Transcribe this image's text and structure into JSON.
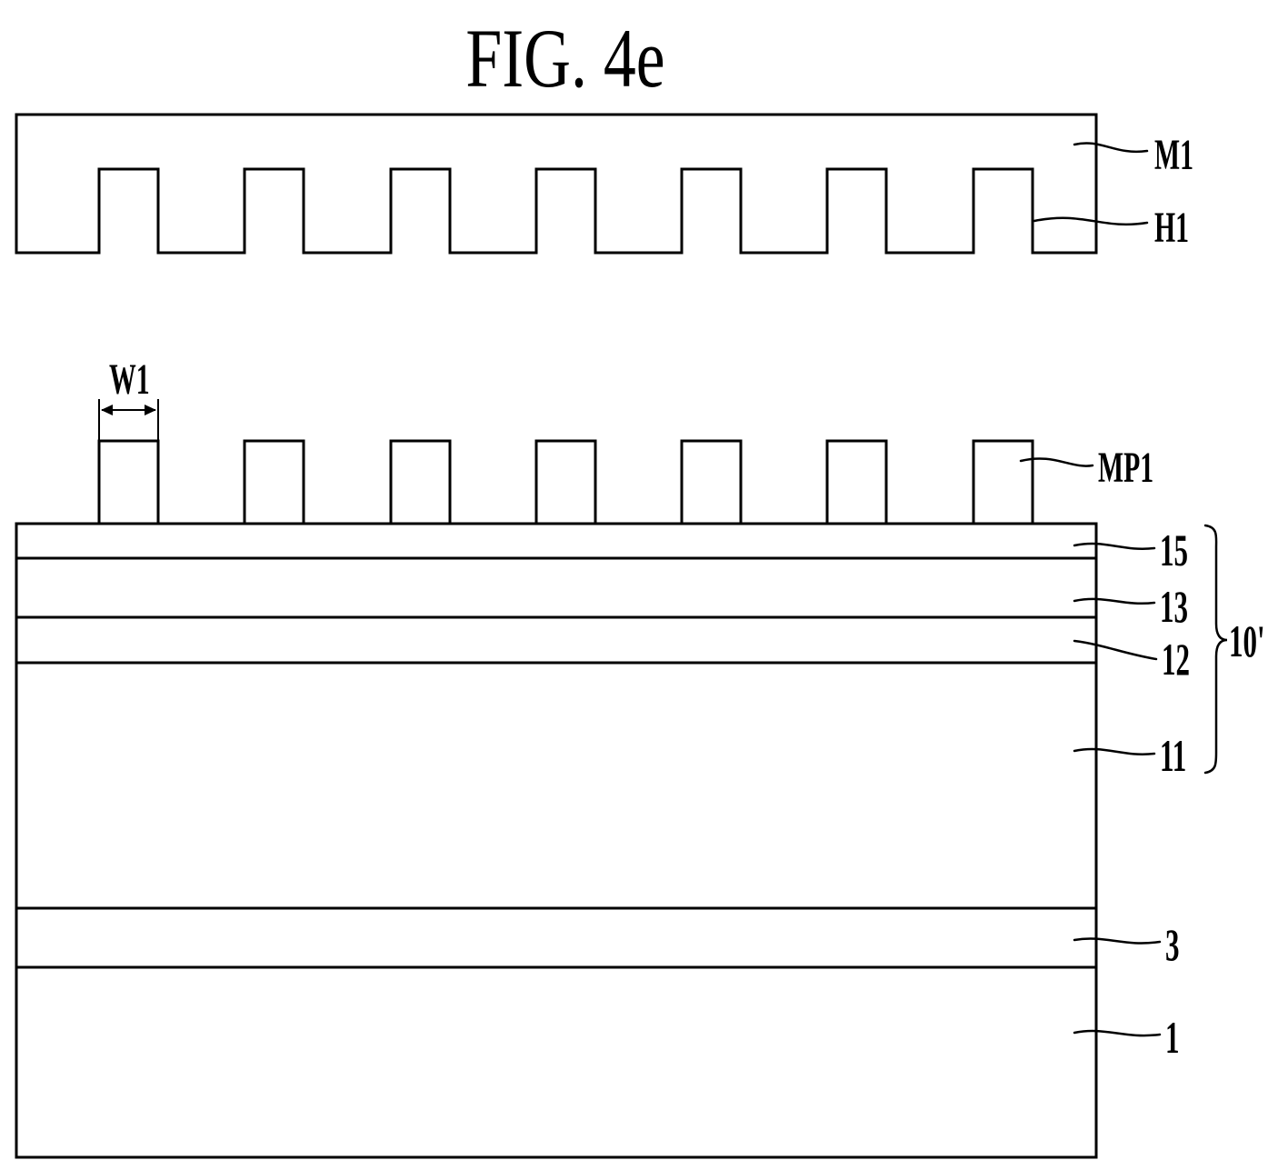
{
  "figure": {
    "title": "FIG. 4e",
    "labels": {
      "mold": "M1",
      "holes": "H1",
      "width": "W1",
      "mold_pattern": "MP1",
      "layer_15": "15",
      "layer_13": "13",
      "layer_12": "12",
      "layer_11": "11",
      "stack": "10'",
      "layer_3": "3",
      "substrate": "1"
    },
    "mold_pattern_count": 7
  }
}
